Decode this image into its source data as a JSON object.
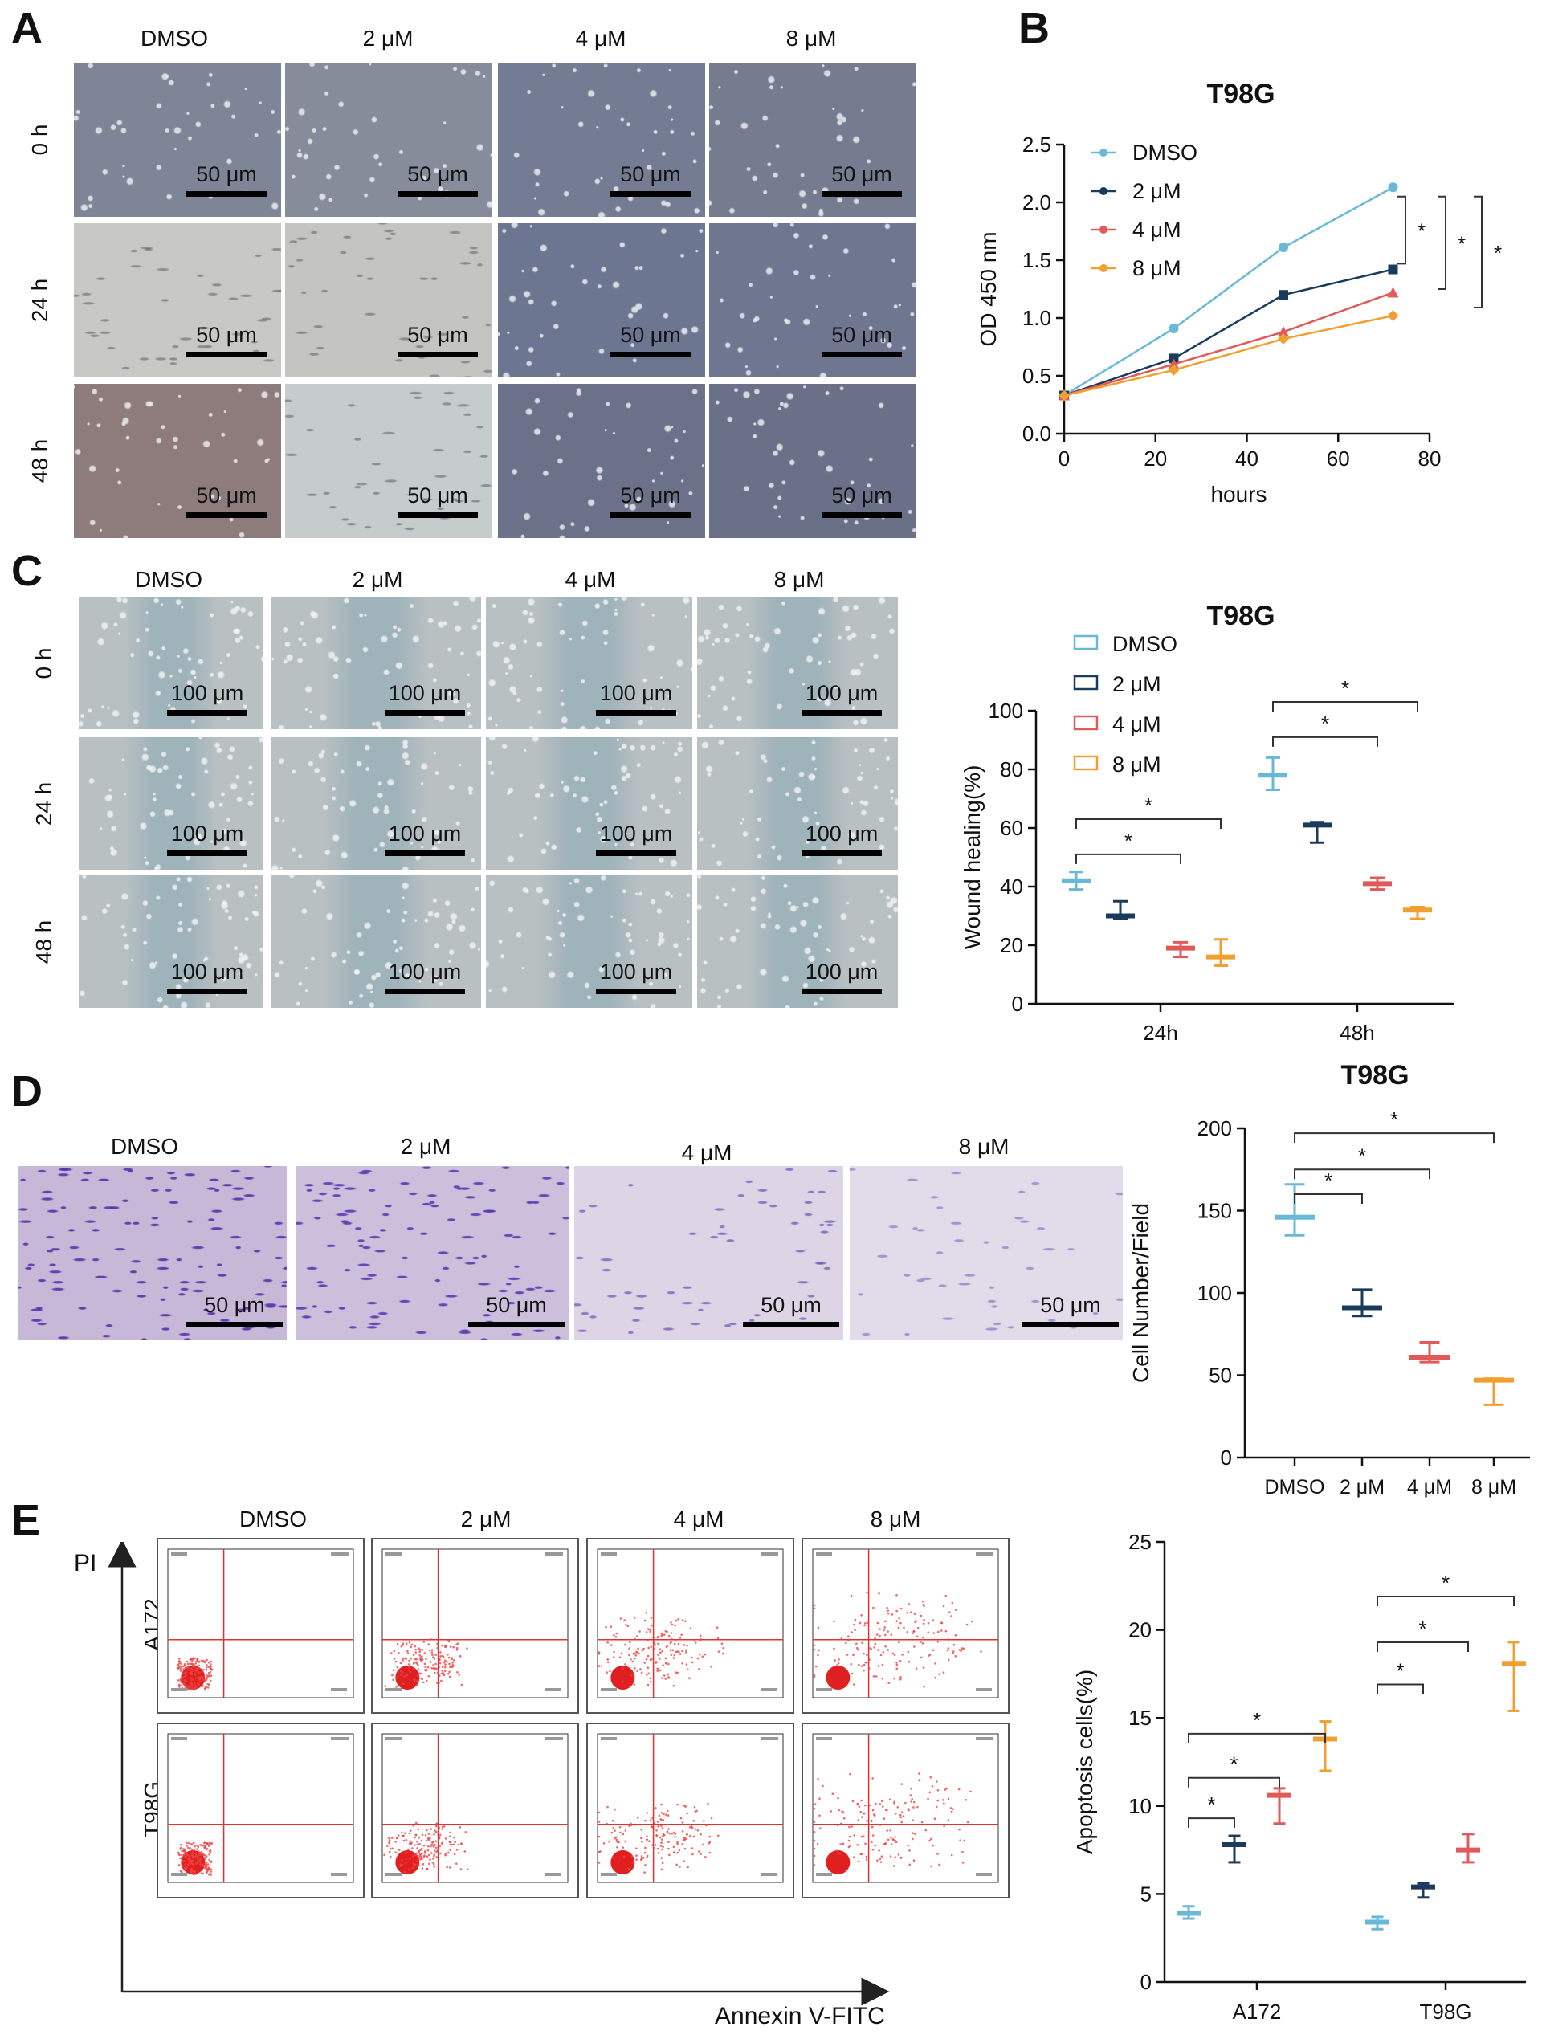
{
  "panels": {
    "A": {
      "letter": "A",
      "columns": [
        "DMSO",
        "2 μM",
        "4 μM",
        "8 μM"
      ],
      "rows": [
        "0 h",
        "24 h",
        "48 h"
      ],
      "scale_label": "50 μm"
    },
    "B": {
      "letter": "B",
      "chart_data": {
        "type": "line",
        "title": "T98G",
        "xlabel": "hours",
        "ylabel": "OD 450 nm",
        "xlim": [
          0,
          80
        ],
        "ylim": [
          0.0,
          2.5
        ],
        "xticks": [
          "0",
          "20",
          "40",
          "60",
          "80"
        ],
        "yticks": [
          "0.0",
          "0.5",
          "1.0",
          "1.5",
          "2.0",
          "2.5"
        ],
        "x": [
          0,
          24,
          48,
          72
        ],
        "series": [
          {
            "name": "DMSO",
            "values": [
              0.33,
              0.91,
              1.61,
              2.13
            ],
            "color": "#6ab8d8",
            "marker": "circle"
          },
          {
            "name": "2 μM",
            "values": [
              0.33,
              0.65,
              1.2,
              1.42
            ],
            "color": "#1a3b5c",
            "marker": "square"
          },
          {
            "name": "4 μM",
            "values": [
              0.33,
              0.6,
              0.88,
              1.22
            ],
            "color": "#e05a5a",
            "marker": "triangle"
          },
          {
            "name": "8 μM",
            "values": [
              0.33,
              0.55,
              0.82,
              1.02
            ],
            "color": "#f0a030",
            "marker": "diamond"
          }
        ],
        "significance": [
          "*",
          "*",
          "*"
        ],
        "legend": "top-left"
      }
    },
    "C": {
      "letter": "C",
      "columns": [
        "DMSO",
        "2 μM",
        "4 μM",
        "8 μM"
      ],
      "rows": [
        "0 h",
        "24 h",
        "48 h"
      ],
      "scale_label": "100 μm",
      "chart_data": {
        "type": "box",
        "title": "T98G",
        "ylabel": "Wound healing(%)",
        "ylim": [
          0,
          100
        ],
        "yticks": [
          "0",
          "20",
          "40",
          "60",
          "80",
          "100"
        ],
        "categories": [
          "24h",
          "48h"
        ],
        "series": [
          {
            "name": "DMSO",
            "color": "#6ab8d8",
            "values": [
              [
                39,
                42,
                45
              ],
              [
                73,
                78,
                84
              ]
            ]
          },
          {
            "name": "2 μM",
            "color": "#1a3b5c",
            "values": [
              [
                29,
                30,
                35
              ],
              [
                55,
                61,
                62
              ]
            ]
          },
          {
            "name": "4 μM",
            "color": "#e05a5a",
            "values": [
              [
                16,
                19,
                21
              ],
              [
                39,
                41,
                43
              ]
            ]
          },
          {
            "name": "8 μM",
            "color": "#f0a030",
            "values": [
              [
                13,
                16,
                22
              ],
              [
                29,
                32,
                33
              ]
            ]
          }
        ],
        "significance": [
          "*",
          "*",
          "*",
          "*"
        ],
        "legend": "top-left"
      }
    },
    "D": {
      "letter": "D",
      "columns": [
        "DMSO",
        "2 μM",
        "4 μM",
        "8 μM"
      ],
      "scale_label": "50 μm",
      "chart_data": {
        "type": "box",
        "title": "T98G",
        "ylabel": "Cell Number/Field",
        "ylim": [
          0,
          200
        ],
        "yticks": [
          "0",
          "50",
          "100",
          "150",
          "200"
        ],
        "categories": [
          "DMSO",
          "2 μM",
          "4 μM",
          "8 μM"
        ],
        "values": [
          [
            135,
            146,
            166
          ],
          [
            86,
            91,
            102
          ],
          [
            58,
            61,
            70
          ],
          [
            32,
            47,
            48
          ]
        ],
        "colors": [
          "#6ab8d8",
          "#1a3b5c",
          "#e05a5a",
          "#f0a030"
        ],
        "significance": [
          "*",
          "*",
          "*"
        ]
      }
    },
    "E": {
      "letter": "E",
      "columns": [
        "DMSO",
        "2 μM",
        "4 μM",
        "8 μM"
      ],
      "rows": [
        "A172",
        "T98G"
      ],
      "y_axis": "PI",
      "x_axis": "Annexin  V-FITC",
      "chart_data": {
        "type": "box",
        "ylabel": "Apoptosis cells(%)",
        "ylim": [
          0,
          25
        ],
        "yticks": [
          "0",
          "5",
          "10",
          "15",
          "20",
          "25"
        ],
        "categories": [
          "A172",
          "T98G"
        ],
        "series": [
          {
            "name": "DMSO",
            "color": "#6ab8d8",
            "values": [
              [
                3.6,
                3.9,
                4.3
              ],
              [
                3.0,
                3.4,
                3.7
              ]
            ]
          },
          {
            "name": "2 μM",
            "color": "#1a3b5c",
            "values": [
              [
                6.8,
                7.8,
                8.3
              ],
              [
                4.8,
                5.4,
                5.6
              ]
            ]
          },
          {
            "name": "4 μM",
            "color": "#e05a5a",
            "values": [
              [
                9.0,
                10.6,
                11.0
              ],
              [
                6.8,
                7.5,
                8.4
              ]
            ]
          },
          {
            "name": "8 μM",
            "color": "#f0a030",
            "values": [
              [
                12.0,
                13.8,
                14.8
              ],
              [
                15.4,
                18.1,
                19.3
              ]
            ]
          }
        ],
        "significance": [
          "*",
          "*",
          "*",
          "*",
          "*",
          "*"
        ]
      }
    }
  }
}
